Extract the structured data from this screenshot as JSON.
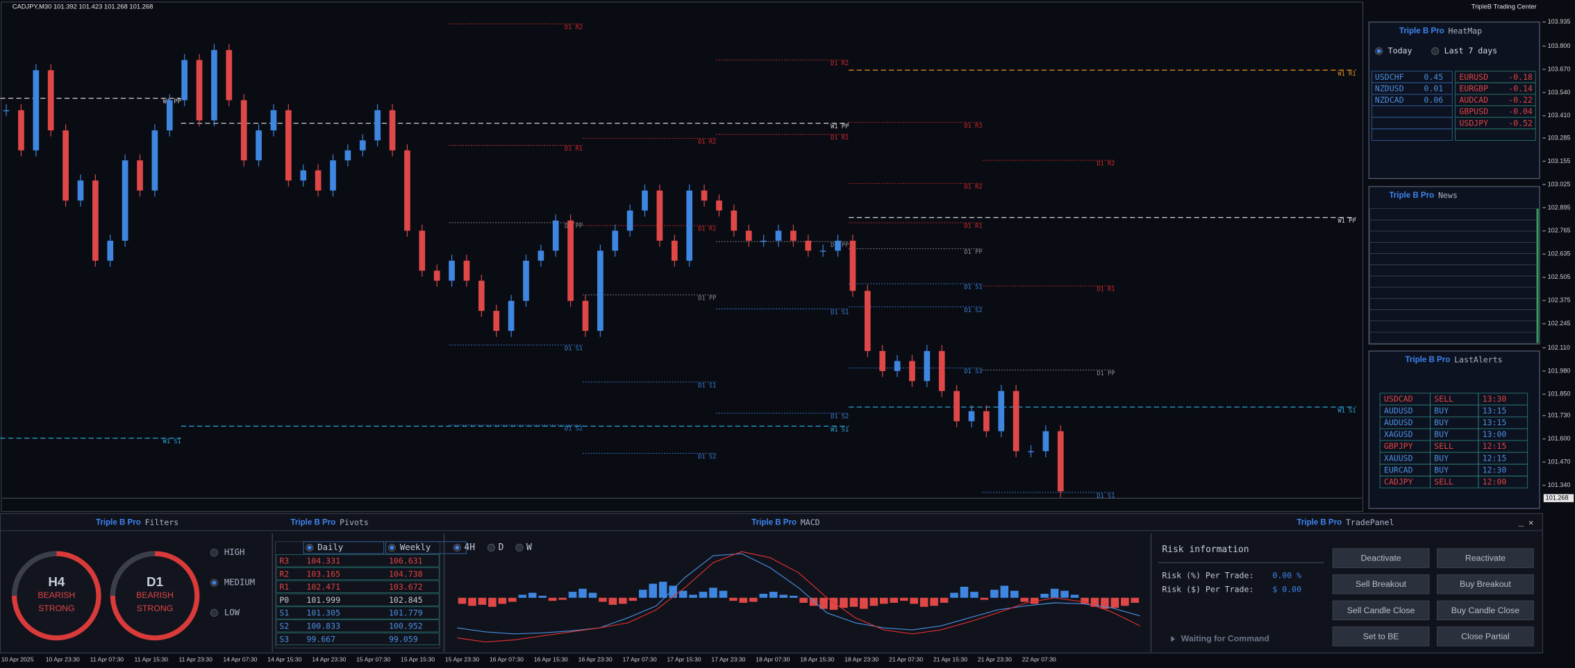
{
  "header": {
    "symbol": "CADJPY,M30  101.392 101.423 101.268 101.268",
    "broker": "TripleB Trading Center"
  },
  "chart": {
    "ylim": [
      101.193,
      104.047
    ],
    "yticks": [
      103.935,
      {
        "value": 103.8,
        "label": "103.800"
      },
      {
        "value": 103.67,
        "label": "103.670"
      },
      {
        "value": 103.54,
        "label": "103.540"
      },
      {
        "value": 103.41,
        "label": "103.410"
      },
      103.285,
      103.155,
      103.025,
      102.895,
      102.765,
      102.635,
      102.505,
      102.375,
      102.245,
      {
        "value": 102.11,
        "label": "102.110"
      },
      {
        "value": 101.98,
        "label": "101.980"
      },
      {
        "value": 101.85,
        "label": "101.850"
      },
      {
        "value": 101.73,
        "label": "101.730"
      },
      {
        "value": 101.6,
        "label": "101.600"
      },
      {
        "value": 101.47,
        "label": "101.470"
      },
      {
        "value": 101.34,
        "label": "101.340"
      }
    ],
    "current_price": 101.268,
    "closes": [
      103.441,
      103.216,
      103.665,
      103.328,
      102.935,
      103.047,
      102.598,
      102.71,
      103.16,
      102.991,
      103.328,
      103.497,
      103.722,
      103.384,
      103.778,
      103.497,
      103.16,
      103.328,
      103.441,
      103.047,
      103.104,
      102.991,
      103.16,
      103.216,
      103.272,
      103.441,
      103.216,
      102.766,
      102.542,
      102.486,
      102.598,
      102.486,
      102.317,
      102.205,
      102.373,
      102.598,
      102.654,
      102.823,
      102.373,
      102.205,
      102.654,
      102.766,
      102.879,
      102.991,
      102.71,
      102.598,
      102.991,
      102.935,
      102.879,
      102.766,
      102.71,
      102.71,
      102.766,
      102.71,
      102.654,
      102.654,
      102.71,
      102.429,
      102.092,
      101.98,
      102.036,
      101.924,
      102.092,
      101.868,
      101.699,
      101.755,
      101.643,
      101.868,
      101.531,
      101.531,
      101.643,
      101.306
    ],
    "levels": [
      {
        "label": "D1 R2",
        "price": 103.924
      },
      {
        "label": "D1 R2",
        "price": 103.722
      },
      {
        "label": "W1 R1",
        "price": 103.665
      },
      {
        "label": "W1 PP",
        "price": 103.508
      },
      {
        "label": "W1 PP",
        "price": 103.368
      },
      {
        "label": "D1 R3",
        "price": 103.373
      },
      {
        "label": "D1 R1",
        "price": 103.306
      },
      {
        "label": "D1 R2",
        "price": 103.283
      },
      {
        "label": "D1 R1",
        "price": 103.244
      },
      {
        "label": "D1 R2",
        "price": 103.16
      },
      {
        "label": "D1 R2",
        "price": 103.031
      },
      {
        "label": "W1 PP",
        "price": 102.84
      },
      {
        "label": "D1 PP",
        "price": 102.811
      },
      {
        "label": "D1 R1",
        "price": 102.811
      },
      {
        "label": "D1 R1",
        "price": 102.795
      },
      {
        "label": "D1 PP",
        "price": 102.705
      },
      {
        "label": "D1 PP",
        "price": 102.665
      },
      {
        "label": "D1 R1",
        "price": 102.457
      },
      {
        "label": "D1 S1",
        "price": 102.469
      },
      {
        "label": "D1 PP",
        "price": 102.407
      },
      {
        "label": "D1 S2",
        "price": 102.34
      },
      {
        "label": "D1 S1",
        "price": 102.328
      },
      {
        "label": "D1 S1",
        "price": 102.126
      },
      {
        "label": "D1 S3",
        "price": 101.997
      },
      {
        "label": "D1 PP",
        "price": 101.986
      },
      {
        "label": "D1 S1",
        "price": 101.918
      },
      {
        "label": "W1 S1",
        "price": 101.778
      },
      {
        "label": "D1 S2",
        "price": 101.744
      },
      {
        "label": "D1 S2",
        "price": 101.677
      },
      {
        "label": "W1 S1",
        "price": 101.671
      },
      {
        "label": "W1 S1",
        "price": 101.604
      },
      {
        "label": "D1 S2",
        "price": 101.519
      },
      {
        "label": "D1 S1",
        "price": 101.3
      }
    ],
    "time_labels": [
      "10 Apr 2025",
      "10 Apr 23:30",
      "11 Apr 07:30",
      "11 Apr 15:30",
      "11 Apr 23:30",
      "14 Apr 07:30",
      "14 Apr 15:30",
      "14 Apr 23:30",
      "15 Apr 07:30",
      "15 Apr 15:30",
      "15 Apr 23:30",
      "16 Apr 07:30",
      "16 Apr 15:30",
      "16 Apr 23:30",
      "17 Apr 07:30",
      "17 Apr 15:30",
      "17 Apr 23:30",
      "18 Apr 07:30",
      "18 Apr 15:30",
      "18 Apr 23:30",
      "21 Apr 07:30",
      "21 Apr 15:30",
      "21 Apr 23:30",
      "22 Apr 07:30"
    ]
  },
  "heatmap": {
    "brand": "Triple B Pro",
    "title": "HeatMap",
    "options": [
      "Today",
      "Last 7 days"
    ],
    "strong": [
      [
        "USDCHF",
        "0.45"
      ],
      [
        "NZDUSD",
        "0.01"
      ],
      [
        "NZDCAD",
        "0.06"
      ]
    ],
    "weak": [
      [
        "EURUSD",
        "-0.18"
      ],
      [
        "EURGBP",
        "-0.14"
      ],
      [
        "AUDCAD",
        "-0.22"
      ],
      [
        "GBPUSD",
        "-0.04"
      ],
      [
        "USDJPY",
        "-0.52"
      ]
    ]
  },
  "news": {
    "brand": "Triple B Pro",
    "title": "News"
  },
  "alerts": {
    "brand": "Triple B Pro",
    "title": "LastAlerts",
    "rows": [
      [
        "USDCAD",
        "SELL",
        "13:30"
      ],
      [
        "AUDUSD",
        "BUY",
        "13:15"
      ],
      [
        "AUDUSD",
        "BUY",
        "13:15"
      ],
      [
        "XAGUSD",
        "BUY",
        "13:00"
      ],
      [
        "GBPJPY",
        "SELL",
        "12:15"
      ],
      [
        "XAUUSD",
        "BUY",
        "12:15"
      ],
      [
        "EURCAD",
        "BUY",
        "12:30"
      ],
      [
        "CADJPY",
        "SELL",
        "12:00"
      ]
    ]
  },
  "filters": {
    "brand": "Triple B Pro",
    "title": "Filters",
    "gauges": [
      {
        "tf": "H4",
        "bias": "BEARISH",
        "strength": "STRONG"
      },
      {
        "tf": "D1",
        "bias": "BEARISH",
        "strength": "STRONG"
      }
    ],
    "levels": [
      "HIGH",
      "MEDIUM",
      "LOW"
    ]
  },
  "pivots": {
    "brand": "Triple B Pro",
    "title": "Pivots",
    "columns": [
      "Daily",
      "Weekly"
    ],
    "rows": [
      [
        "R3",
        "104.331",
        "106.631"
      ],
      [
        "R2",
        "103.165",
        "104.738"
      ],
      [
        "R1",
        "102.471",
        "103.672"
      ],
      [
        "P0",
        "101.999",
        "102.845"
      ],
      [
        "S1",
        "101.305",
        "101.779"
      ],
      [
        "S2",
        "100.833",
        "100.952"
      ],
      [
        "S3",
        "99.667",
        "99.059"
      ]
    ]
  },
  "macd": {
    "brand": "Triple B Pro",
    "title": "MACD",
    "timeframes": [
      "4H",
      "D",
      "W"
    ],
    "ylim": [
      -50,
      50
    ],
    "histogram": [
      -6,
      -8,
      -7,
      -9,
      -6,
      -4,
      3,
      5,
      2,
      -3,
      -2,
      6,
      9,
      5,
      -4,
      -7,
      -6,
      -3,
      8,
      14,
      16,
      12,
      7,
      3,
      6,
      10,
      7,
      -3,
      -5,
      -4,
      4,
      6,
      3,
      2,
      -5,
      -8,
      -11,
      -12,
      -10,
      -9,
      -11,
      -8,
      -6,
      -5,
      -3,
      -6,
      -9,
      -8,
      -5,
      5,
      11,
      6,
      -2,
      8,
      12,
      7,
      -4,
      -6,
      4,
      9,
      7,
      3,
      -6,
      -9,
      -11,
      -10,
      -8,
      -5
    ],
    "series": [
      {
        "color": "#4a8fe0",
        "values": [
          -30,
          -34,
          -36,
          -35,
          -33,
          -30,
          -20,
          -8,
          20,
          42,
          44,
          30,
          10,
          -15,
          -25,
          -30,
          -32,
          -28,
          -20,
          -12,
          -8,
          -5,
          -6,
          -10,
          -18
        ]
      },
      {
        "color": "#e03030",
        "values": [
          -40,
          -44,
          -42,
          -38,
          -34,
          -30,
          -25,
          -12,
          10,
          35,
          46,
          40,
          25,
          0,
          -20,
          -32,
          -36,
          -32,
          -24,
          -15,
          -5,
          0,
          -4,
          -14,
          -28
        ]
      }
    ]
  },
  "trade_panel": {
    "brand": "Triple B Pro",
    "title": "TradePanel",
    "controls": [
      "_",
      "✕"
    ],
    "risk_title": "Risk information",
    "risk_pct_label": "Risk (%) Per Trade:",
    "risk_pct": "0.00 %",
    "risk_usd_label": "Risk ($) Per Trade:",
    "risk_usd": "$ 0.00",
    "status": "Waiting for Command",
    "buttons": [
      "Deactivate",
      "Reactivate",
      "Sell Breakout",
      "Buy Breakout",
      "Sell Candle Close",
      "Buy Candle Close",
      "Set to BE",
      "Close Partial"
    ]
  }
}
